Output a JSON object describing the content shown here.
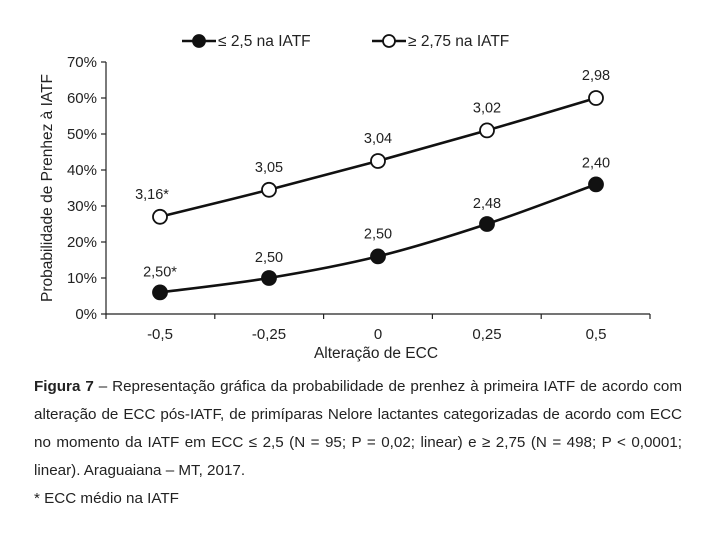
{
  "chart_data": {
    "type": "line",
    "xlabel": "Alteração de ECC",
    "ylabel": "Probabilidade de Prenhez à IATF",
    "categories": [
      "-0,5",
      "-0,25",
      "0",
      "0,25",
      "0,5"
    ],
    "x": [
      -0.5,
      -0.25,
      0,
      0.25,
      0.5
    ],
    "ylim": [
      0,
      70
    ],
    "yticks": [
      0,
      10,
      20,
      30,
      40,
      50,
      60,
      70
    ],
    "ytick_labels": [
      "0%",
      "10%",
      "20%",
      "30%",
      "40%",
      "50%",
      "60%",
      "70%"
    ],
    "grid": false,
    "legend_position": "top",
    "series": [
      {
        "name": "≤ 2,5 na IATF",
        "marker": "filled",
        "color": "#111111",
        "values": [
          6,
          10,
          16,
          25,
          36
        ],
        "point_labels": [
          "2,50*",
          "2,50",
          "2,50",
          "2,48",
          "2,40"
        ]
      },
      {
        "name": "≥ 2,75 na IATF",
        "marker": "open",
        "color": "#111111",
        "values": [
          27,
          34.5,
          42.5,
          51,
          60
        ],
        "point_labels": [
          "3,16*",
          "3,05",
          "3,04",
          "3,02",
          "2,98"
        ]
      }
    ]
  },
  "caption": {
    "label": "Figura 7",
    "text": " – Representação gráfica da probabilidade de prenhez à primeira IATF de acordo com alteração de ECC pós-IATF, de primíparas Nelore lactantes categorizadas de acordo com ECC no momento da IATF em ECC ≤ 2,5 (N = 95; P = 0,02; linear) e ≥ 2,75 (N = 498; P < 0,0001; linear). Araguaiana – MT, 2017."
  },
  "footnote": "* ECC médio na IATF"
}
